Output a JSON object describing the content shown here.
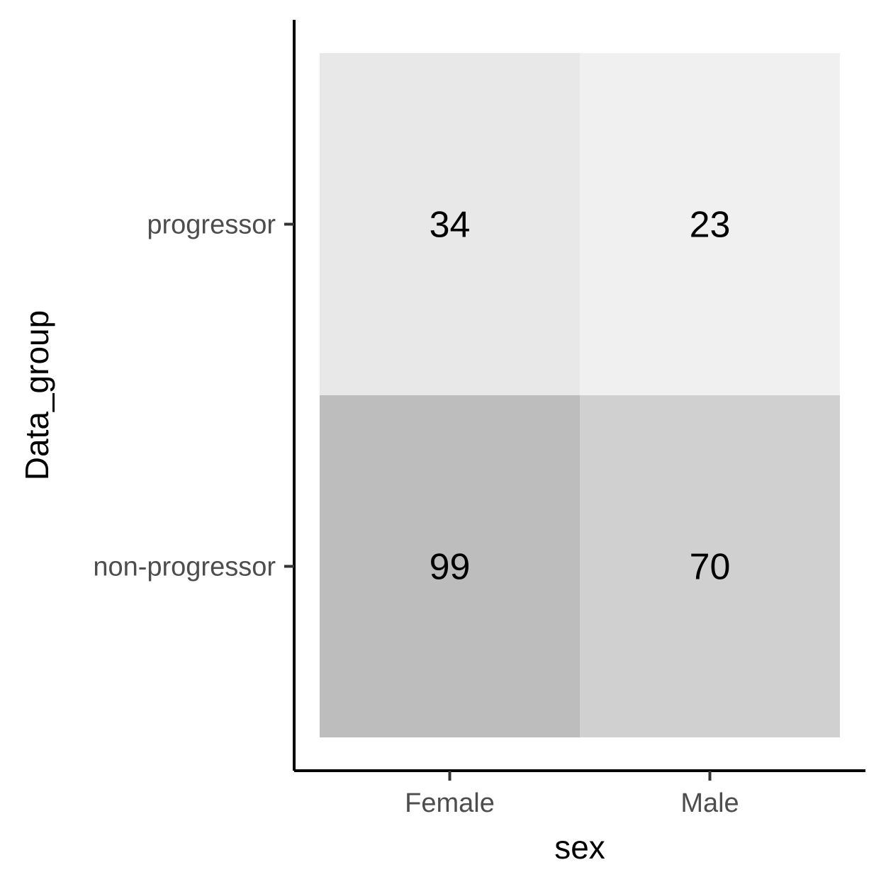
{
  "chart_data": {
    "type": "heatmap",
    "title": "",
    "xlabel": "sex",
    "ylabel": "Data_group",
    "x_categories": [
      "Female",
      "Male"
    ],
    "y_categories": [
      "progressor",
      "non-progressor"
    ],
    "values": [
      [
        34,
        23
      ],
      [
        99,
        70
      ]
    ],
    "color_scale": {
      "low": "#ffffff",
      "high": "#a8a8a8",
      "min": 0,
      "max": 130
    },
    "grid": false,
    "legend": "none"
  }
}
